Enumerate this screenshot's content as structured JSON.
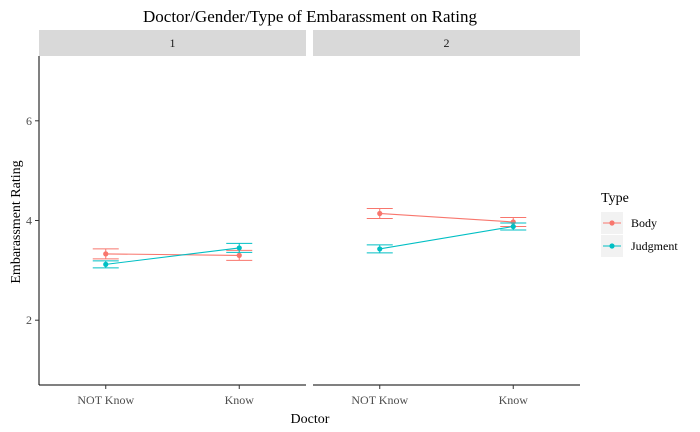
{
  "chart_data": {
    "type": "line",
    "title": "Doctor/Gender/Type of Embarassment on Rating",
    "xlabel": "Doctor",
    "ylabel": "Embarassment Rating",
    "categories": [
      "NOT Know",
      "Know"
    ],
    "ylim": [
      0.7,
      7.3
    ],
    "yticks": [
      2,
      4,
      6
    ],
    "grid": false,
    "facets": [
      {
        "label": "1",
        "series": [
          {
            "name": "Body",
            "values": [
              3.33,
              3.3
            ],
            "error": [
              0.1,
              0.1
            ]
          },
          {
            "name": "Judgment",
            "values": [
              3.12,
              3.45
            ],
            "error": [
              0.07,
              0.09
            ]
          }
        ]
      },
      {
        "label": "2",
        "series": [
          {
            "name": "Body",
            "values": [
              4.14,
              3.97
            ],
            "error": [
              0.1,
              0.09
            ]
          },
          {
            "name": "Judgment",
            "values": [
              3.43,
              3.88
            ],
            "error": [
              0.08,
              0.07
            ]
          }
        ]
      }
    ],
    "legend": {
      "title": "Type",
      "placement": "right",
      "entries": [
        {
          "name": "Body",
          "color": "#F8766D"
        },
        {
          "name": "Judgment",
          "color": "#00BFC4"
        }
      ]
    }
  }
}
